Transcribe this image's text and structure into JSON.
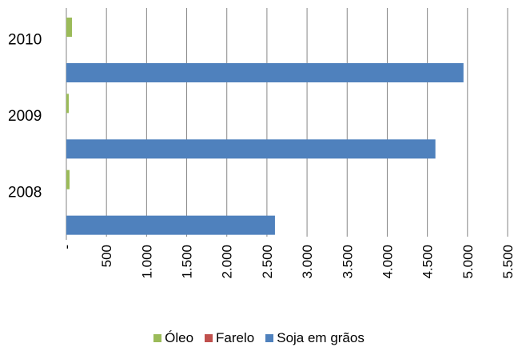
{
  "chart_data": {
    "type": "bar",
    "orientation": "horizontal",
    "categories": [
      "2008",
      "2009",
      "2010"
    ],
    "series": [
      {
        "name": "Óleo",
        "color": "#9BBB59",
        "values": [
          40,
          30,
          70
        ]
      },
      {
        "name": "Farelo",
        "color": "#C0504D",
        "values": [
          0,
          0,
          0
        ]
      },
      {
        "name": "Soja em grãos",
        "color": "#4F81BD",
        "values": [
          2600,
          4600,
          4950
        ]
      }
    ],
    "xlim": [
      0,
      5500
    ],
    "x_ticks": [
      "-",
      "500",
      "1.000",
      "1.500",
      "2.000",
      "2.500",
      "3.000",
      "3.500",
      "4.000",
      "4.500",
      "5.000",
      "5.500"
    ],
    "grid": true,
    "legend_position": "bottom"
  }
}
